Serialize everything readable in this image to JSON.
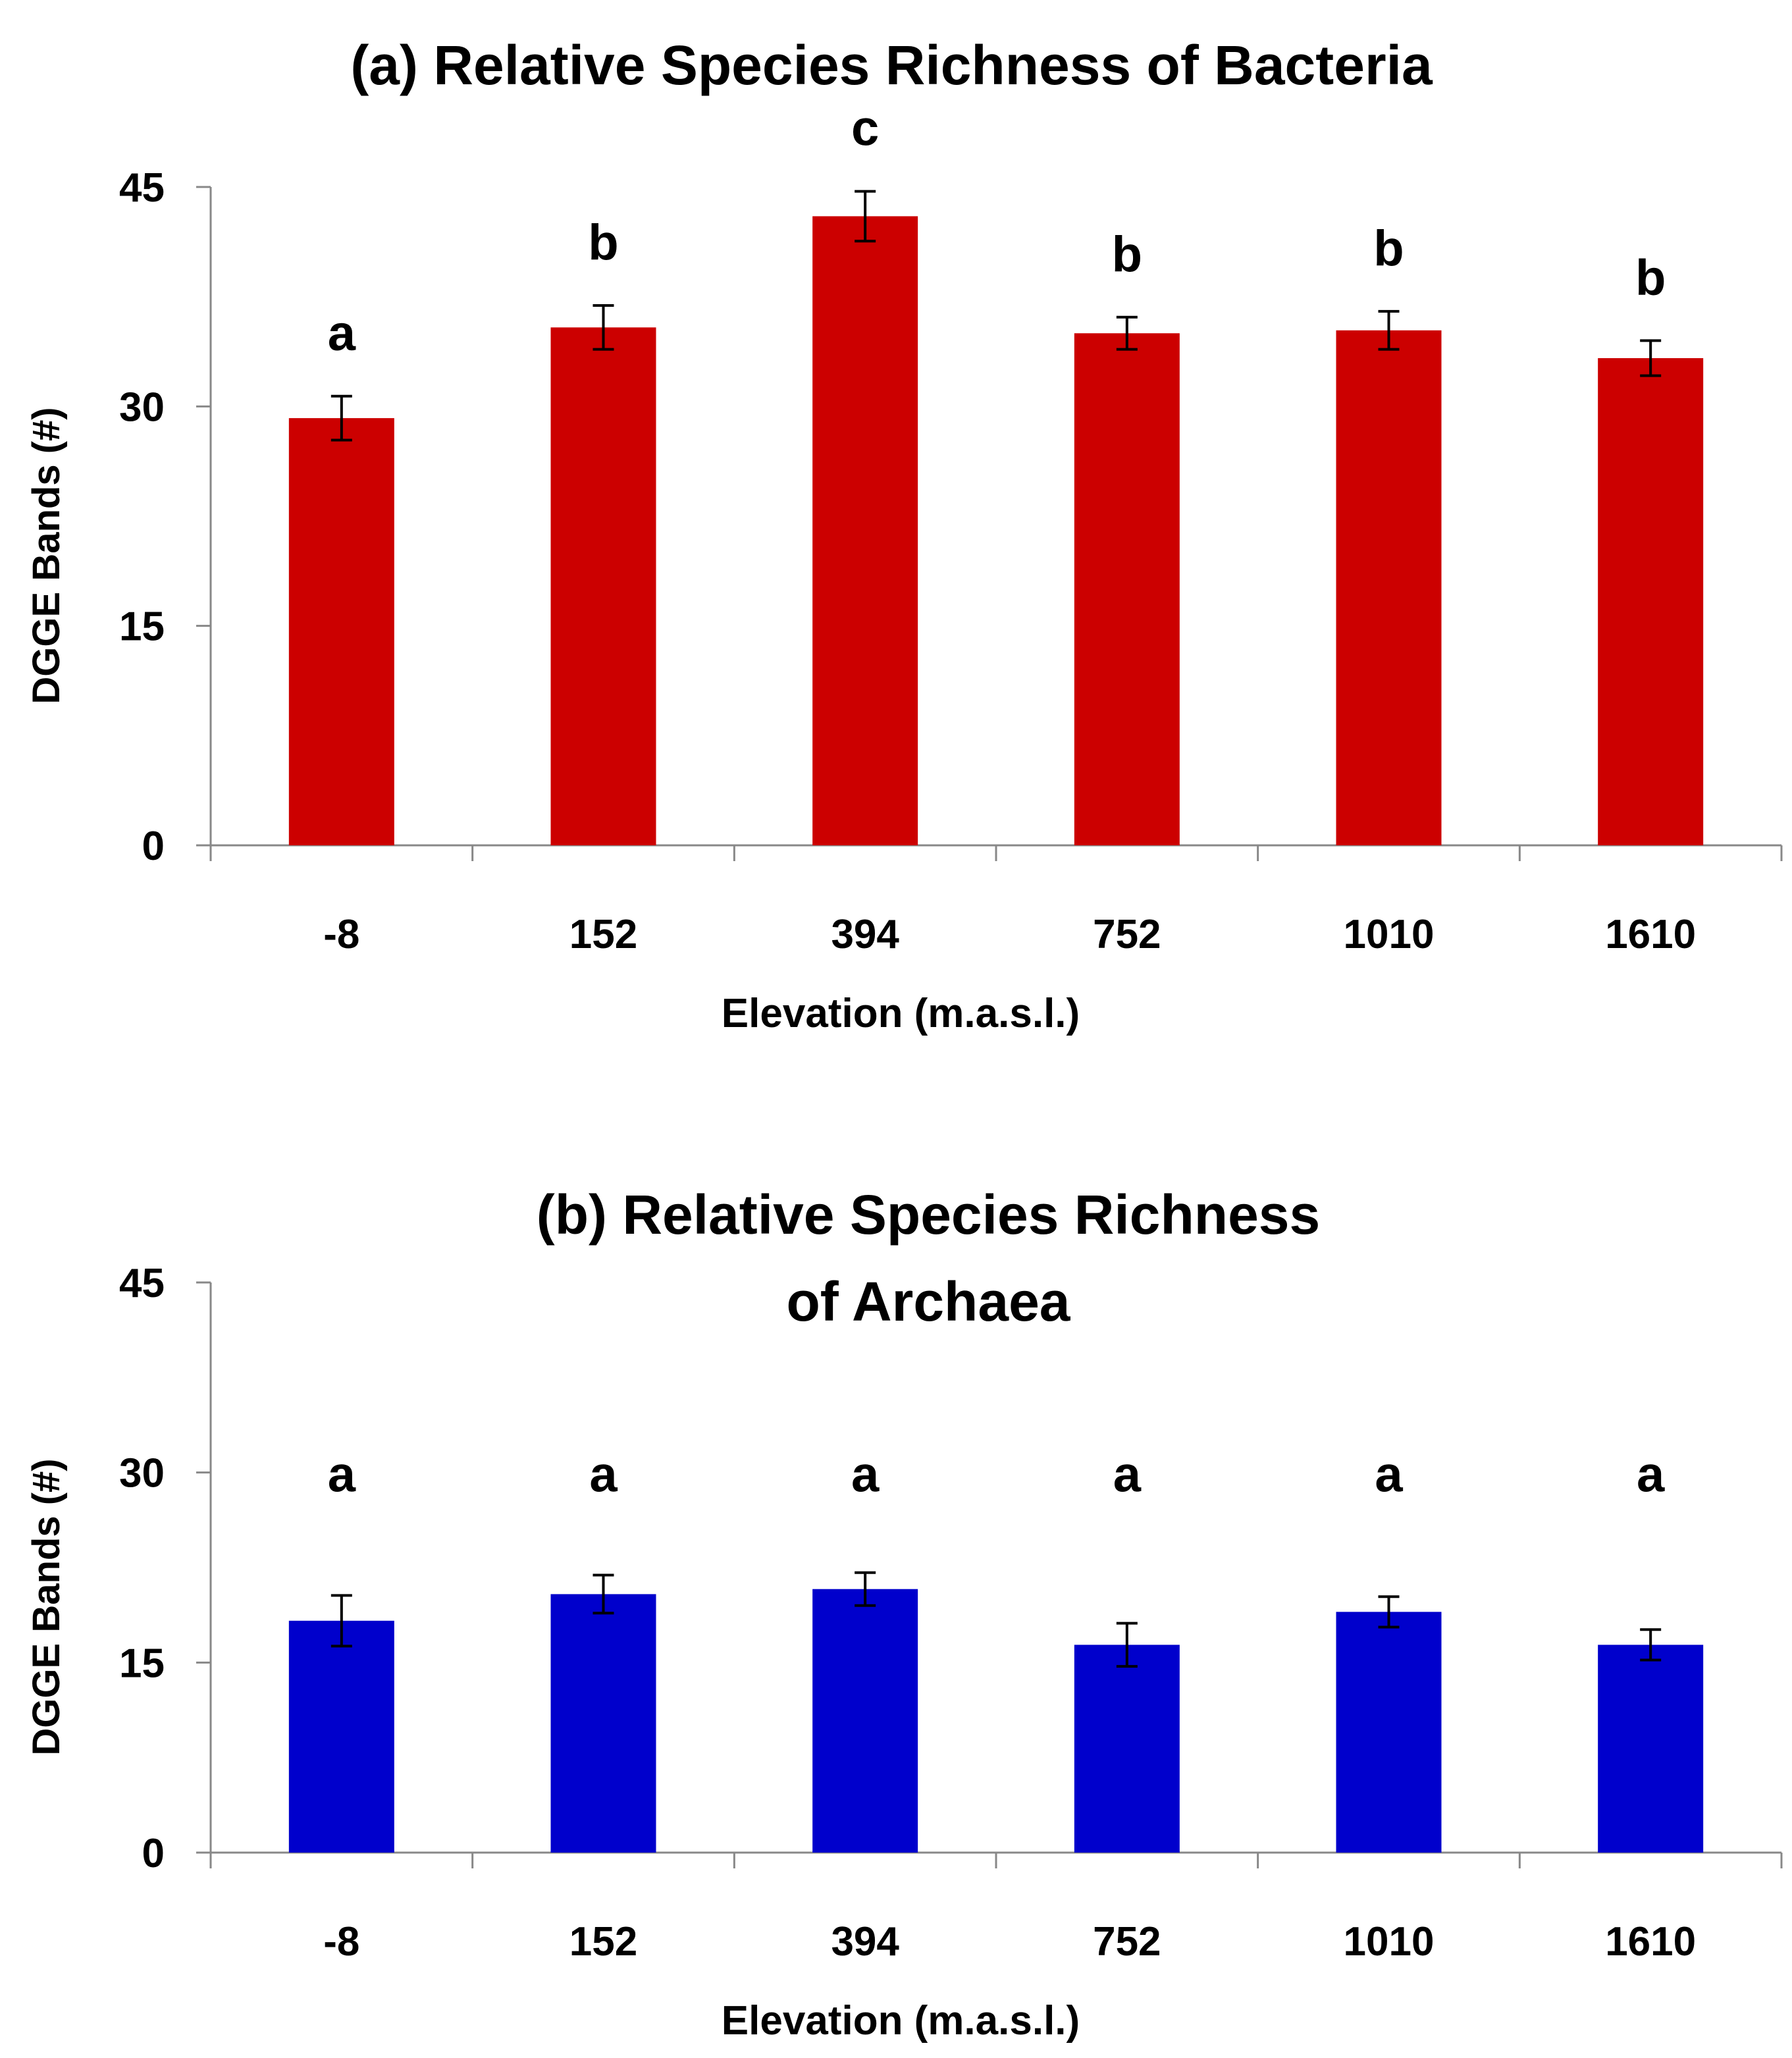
{
  "chart_data": [
    {
      "type": "bar",
      "title_lines": [
        "(a) Relative Species Richness of Bacteria"
      ],
      "xlabel": "Elevation (m.a.s.l.)",
      "ylabel": "DGGE Bands (#)",
      "ylim": [
        0,
        45
      ],
      "yticks": [
        "0",
        "15",
        "30",
        "45"
      ],
      "grid": false,
      "categories": [
        "-8",
        "152",
        "394",
        "752",
        "1010",
        "1610"
      ],
      "series": [
        {
          "name": "Bacteria",
          "color": "#cc0000",
          "values": [
            29.2,
            35.4,
            43.0,
            35.0,
            35.2,
            33.3
          ],
          "errors": [
            1.5,
            1.5,
            1.7,
            1.1,
            1.3,
            1.2
          ],
          "letters": [
            "a",
            "b",
            "c",
            "b",
            "b",
            "b"
          ]
        }
      ]
    },
    {
      "type": "bar",
      "title_lines": [
        "(b) Relative Species Richness",
        "of Archaea"
      ],
      "xlabel": "Elevation (m.a.s.l.)",
      "ylabel": "DGGE Bands (#)",
      "ylim": [
        0,
        45
      ],
      "yticks": [
        "0",
        "15",
        "30",
        "45"
      ],
      "grid": false,
      "categories": [
        "-8",
        "152",
        "394",
        "752",
        "1010",
        "1610"
      ],
      "series": [
        {
          "name": "Archaea",
          "color": "#0000cc",
          "values": [
            18.3,
            20.4,
            20.8,
            16.4,
            19.0,
            16.4
          ],
          "errors": [
            2.0,
            1.5,
            1.3,
            1.7,
            1.2,
            1.2
          ],
          "letters": [
            "a",
            "a",
            "a",
            "a",
            "a",
            "a"
          ]
        }
      ]
    }
  ]
}
